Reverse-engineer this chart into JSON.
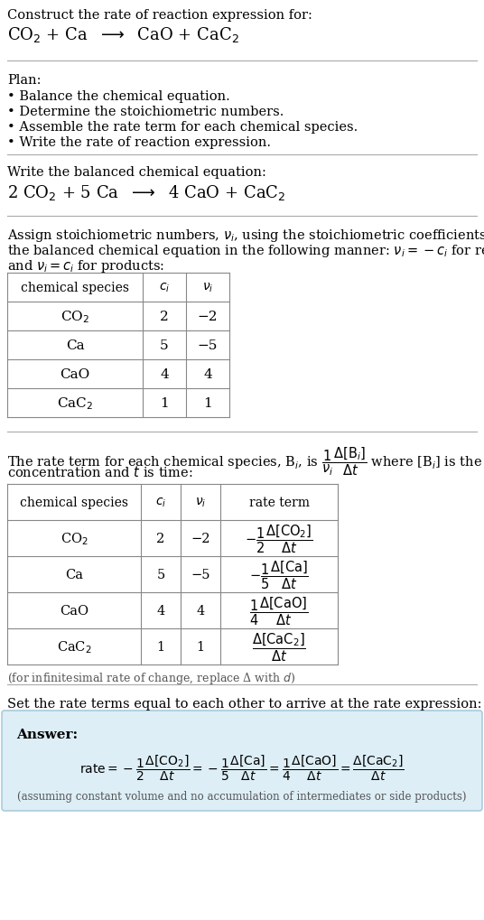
{
  "bg_color": "#ffffff",
  "answer_box_color": "#ddeef6",
  "answer_box_border": "#aaccdd",
  "text_color": "#000000",
  "title_line1": "Construct the rate of reaction expression for:",
  "unbalanced_eq": "CO$_2$ + Ca  $\\longrightarrow$  CaO + CaC$_2$",
  "plan_header": "Plan:",
  "plan_bullets": [
    "• Balance the chemical equation.",
    "• Determine the stoichiometric numbers.",
    "• Assemble the rate term for each chemical species.",
    "• Write the rate of reaction expression."
  ],
  "balanced_header": "Write the balanced chemical equation:",
  "balanced_eq": "2 CO$_2$ + 5 Ca  $\\longrightarrow$  4 CaO + CaC$_2$",
  "stoich_header_line1": "Assign stoichiometric numbers, $\\nu_i$, using the stoichiometric coefficients, $c_i$, from",
  "stoich_header_line2": "the balanced chemical equation in the following manner: $\\nu_i = -c_i$ for reactants",
  "stoich_header_line3": "and $\\nu_i = c_i$ for products:",
  "table1_headers": [
    "chemical species",
    "$c_i$",
    "$\\nu_i$"
  ],
  "table1_rows": [
    [
      "CO$_2$",
      "2",
      "−2"
    ],
    [
      "Ca",
      "5",
      "−5"
    ],
    [
      "CaO",
      "4",
      "4"
    ],
    [
      "CaC$_2$",
      "1",
      "1"
    ]
  ],
  "rate_header_line1": "The rate term for each chemical species, B$_i$, is $\\dfrac{1}{\\nu_i}\\dfrac{\\Delta[\\mathrm{B}_i]}{\\Delta t}$ where [B$_i$] is the amount",
  "rate_header_line2": "concentration and $t$ is time:",
  "table2_headers": [
    "chemical species",
    "$c_i$",
    "$\\nu_i$",
    "rate term"
  ],
  "table2_rows": [
    [
      "CO$_2$",
      "2",
      "−2",
      "$-\\dfrac{1}{2}\\dfrac{\\Delta[\\mathrm{CO_2}]}{\\Delta t}$"
    ],
    [
      "Ca",
      "5",
      "−5",
      "$-\\dfrac{1}{5}\\dfrac{\\Delta[\\mathrm{Ca}]}{\\Delta t}$"
    ],
    [
      "CaO",
      "4",
      "4",
      "$\\dfrac{1}{4}\\dfrac{\\Delta[\\mathrm{CaO}]}{\\Delta t}$"
    ],
    [
      "CaC$_2$",
      "1",
      "1",
      "$\\dfrac{\\Delta[\\mathrm{CaC_2}]}{\\Delta t}$"
    ]
  ],
  "infinitesimal_note": "(for infinitesimal rate of change, replace Δ with $d$)",
  "set_rate_text": "Set the rate terms equal to each other to arrive at the rate expression:",
  "answer_label": "Answer:",
  "answer_rate_eq": "$\\mathrm{rate} = -\\dfrac{1}{2}\\dfrac{\\Delta[\\mathrm{CO_2}]}{\\Delta t} = -\\dfrac{1}{5}\\dfrac{\\Delta[\\mathrm{Ca}]}{\\Delta t} = \\dfrac{1}{4}\\dfrac{\\Delta[\\mathrm{CaO}]}{\\Delta t} = \\dfrac{\\Delta[\\mathrm{CaC_2}]}{\\Delta t}$",
  "answer_footnote": "(assuming constant volume and no accumulation of intermediates or side products)"
}
